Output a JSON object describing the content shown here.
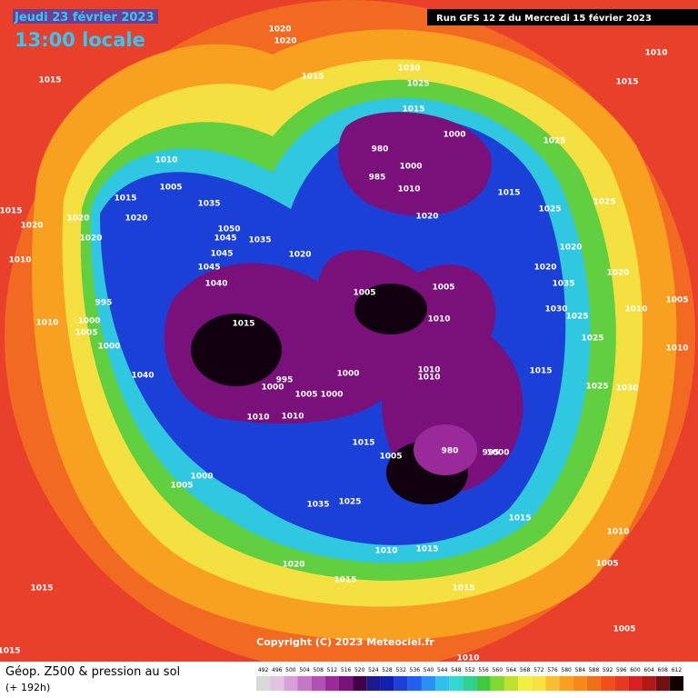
{
  "header": {
    "date": "Jeudi 23 février 2023",
    "time": "13:00 locale",
    "run": "Run GFS 12 Z du Mercredi 15 février 2023"
  },
  "copyright": "Copyright (C) 2023 Meteociel.fr",
  "footer": {
    "title": "Géop. Z500 & pression au sol",
    "lead": "(+ 192h)"
  },
  "legend": {
    "values": [
      492,
      496,
      500,
      504,
      508,
      512,
      516,
      520,
      524,
      528,
      532,
      536,
      540,
      544,
      548,
      552,
      556,
      560,
      564,
      568,
      572,
      576,
      580,
      584,
      588,
      592,
      596,
      600,
      604,
      608,
      612
    ],
    "colors": [
      "#d8d8d8",
      "#e0c4e0",
      "#d8a0d8",
      "#c478c4",
      "#b050b0",
      "#9a2a9a",
      "#7a107a",
      "#400048",
      "#1a1a8a",
      "#1020b0",
      "#1a40d8",
      "#2060f0",
      "#2890f8",
      "#30c0f0",
      "#30d8d0",
      "#30d090",
      "#40c840",
      "#80d830",
      "#c0e030",
      "#f0f040",
      "#f8e040",
      "#f8c030",
      "#f8a020",
      "#f88818",
      "#f07018",
      "#f05018",
      "#e83820",
      "#d82020",
      "#b01818",
      "#701010",
      "#100000"
    ]
  },
  "isobar_labels": [
    "1020",
    "1020",
    "1015",
    "1015",
    "1030",
    "1025",
    "1010",
    "1015",
    "1015",
    "1000",
    "980",
    "985",
    "1000",
    "1010",
    "1010",
    "1005",
    "1015",
    "1015",
    "1020",
    "1020",
    "1020",
    "1035",
    "1050",
    "1045",
    "1035",
    "1045",
    "1020",
    "1045",
    "1040",
    "1020",
    "1015",
    "1025",
    "1025",
    "1025",
    "1020",
    "1020",
    "1020",
    "1010",
    "1020",
    "995",
    "1010",
    "1000",
    "1005",
    "1000",
    "1005",
    "1005",
    "1010",
    "1015",
    "1040",
    "1000",
    "1010",
    "1010",
    "995",
    "1000",
    "1005",
    "1000",
    "1010",
    "1010",
    "1015",
    "1005",
    "980",
    "995",
    "1000",
    "1000",
    "1005",
    "1035",
    "1025",
    "1015",
    "1010",
    "1010",
    "1015",
    "1005",
    "1020",
    "1015",
    "1015",
    "1015",
    "1005",
    "1015",
    "1010",
    "1030",
    "1025",
    "1025",
    "1035",
    "1030",
    "1025",
    "1005",
    "1010",
    "1010",
    "1015"
  ]
}
